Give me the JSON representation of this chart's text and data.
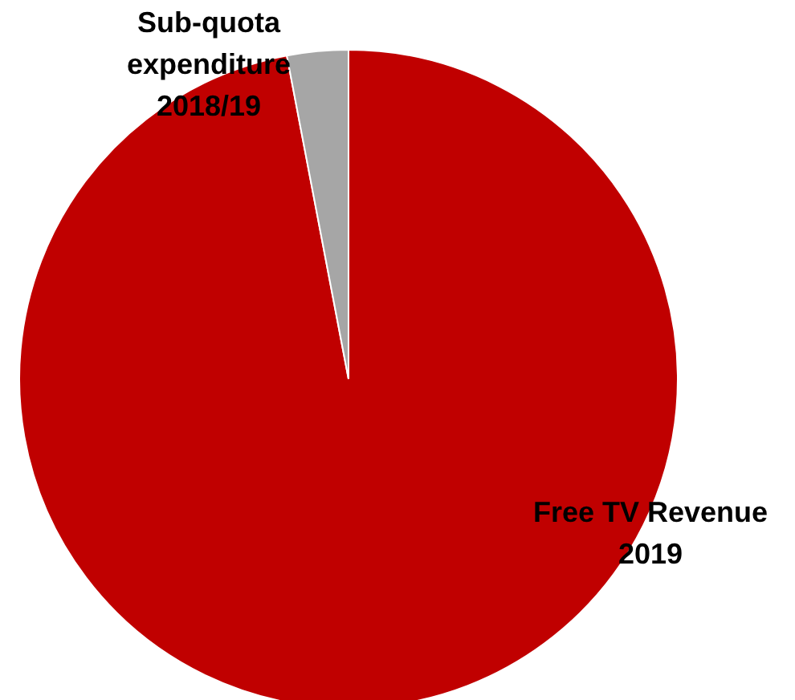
{
  "chart_data": {
    "type": "pie",
    "categories": [
      "Free TV Revenue 2019",
      "Sub-quota expenditure 2018/19"
    ],
    "values": [
      97,
      3
    ],
    "colors": [
      "#c00000",
      "#a6a6a6"
    ]
  }
}
